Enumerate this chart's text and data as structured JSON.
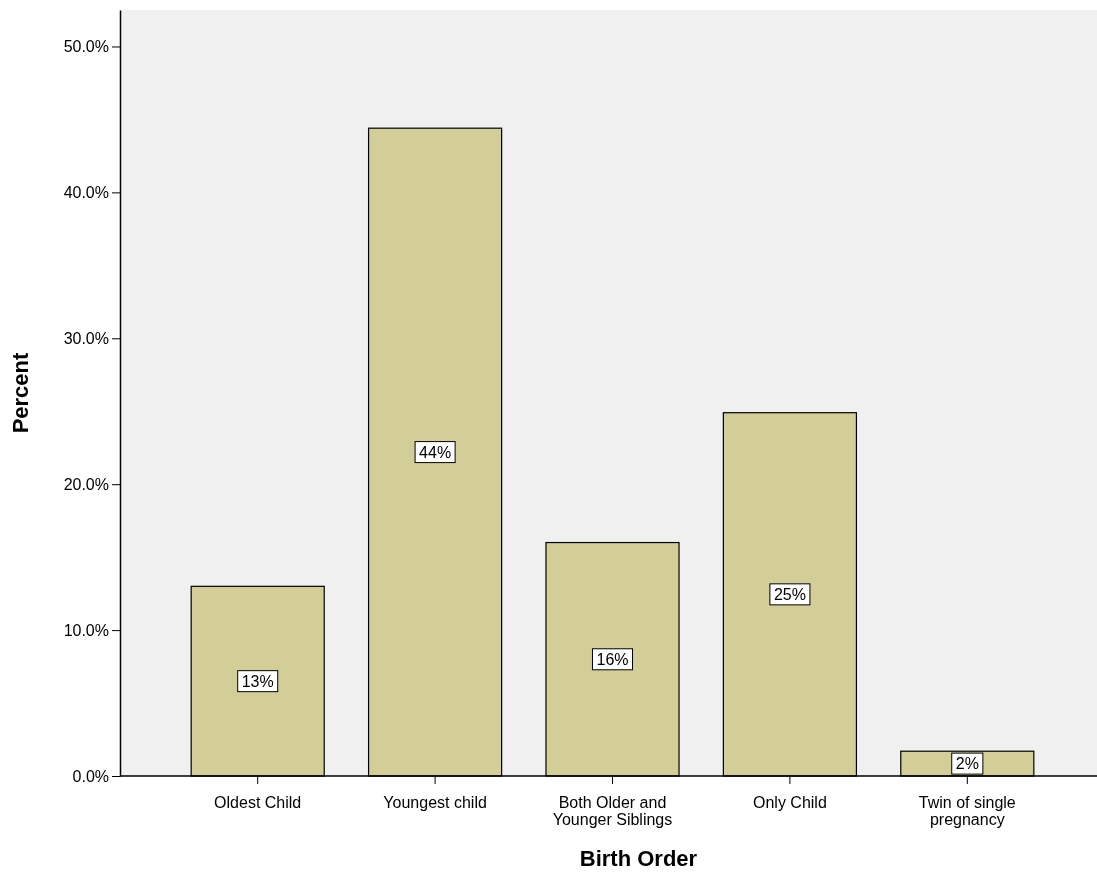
{
  "chart_data": {
    "type": "bar",
    "xlabel": "Birth Order",
    "ylabel": "Percent",
    "categories": [
      "Oldest Child",
      "Youngest child",
      "Both Older and Younger Siblings",
      "Only Child",
      "Twin of single pregnancy"
    ],
    "values": [
      13.0,
      44.4,
      16.0,
      24.9,
      1.7
    ],
    "value_labels": [
      "13%",
      "44%",
      "16%",
      "25%",
      "2%"
    ],
    "color": "#d3ce97",
    "ylim": [
      0,
      52.5
    ],
    "yticks": [
      {
        "value": 0,
        "label": "0.0%"
      },
      {
        "value": 10,
        "label": "10.0%"
      },
      {
        "value": 20,
        "label": "20.0%"
      },
      {
        "value": 30,
        "label": "30.0%"
      },
      {
        "value": 40,
        "label": "40.0%"
      },
      {
        "value": 50,
        "label": "50.0%"
      }
    ],
    "grid": false
  }
}
